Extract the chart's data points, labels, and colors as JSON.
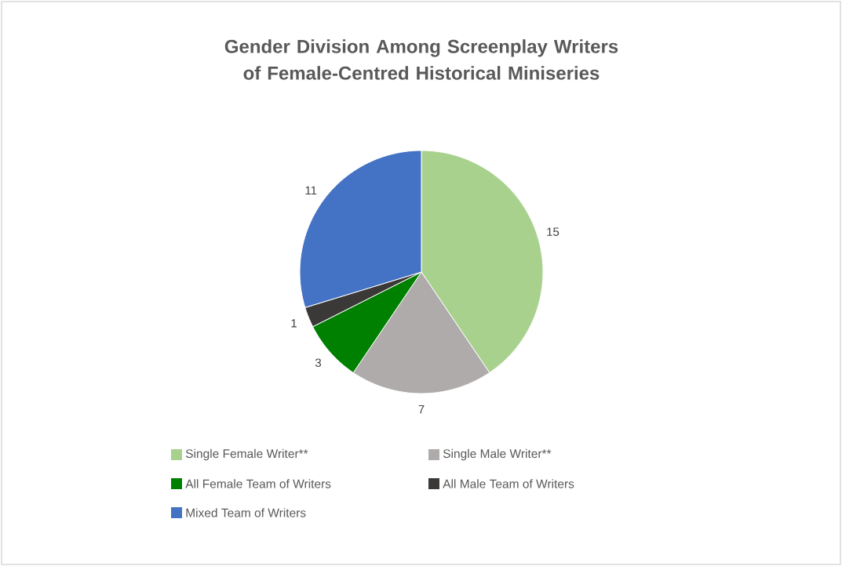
{
  "chart_data": {
    "type": "pie",
    "title": "Gender Division Among Screenplay Writers of Female-Centred Historical Miniseries",
    "categories": [
      "Single Female Writer**",
      "Single Male Writer**",
      "All Female Team of Writers",
      "All Male Team of Writers",
      "Mixed Team of Writers"
    ],
    "values": [
      15,
      7,
      3,
      1,
      11
    ],
    "colors": [
      "#a9d18e",
      "#afabab",
      "#008000",
      "#3b3838",
      "#4472c4"
    ],
    "data_labels": true,
    "legend": "bottom"
  }
}
